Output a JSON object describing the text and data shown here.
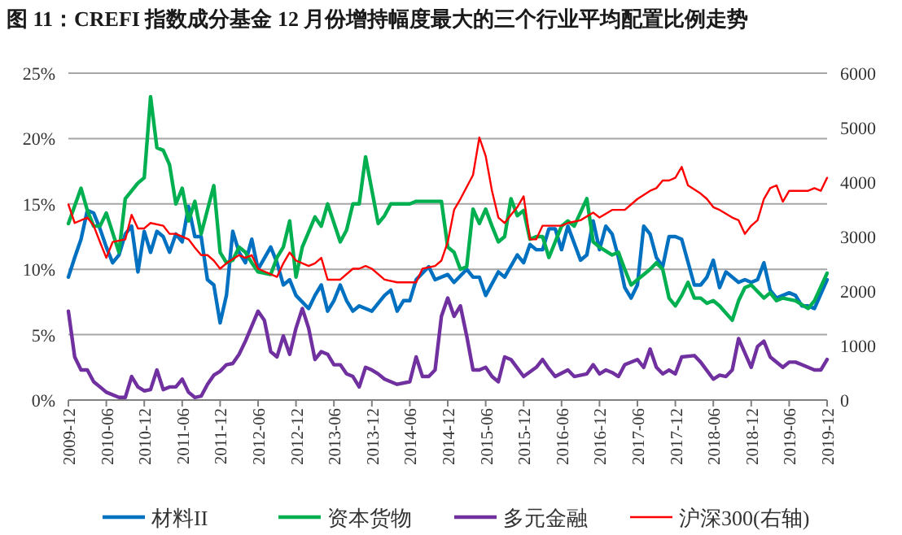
{
  "chart_data": {
    "type": "line",
    "title": "图 11：CREFI 指数成分基金 12 月份增持幅度最大的三个行业平均配置比例走势",
    "xlim": [
      "2009-12",
      "2019-12"
    ],
    "xticks": [
      "2009-12",
      "2010-06",
      "2010-12",
      "2011-06",
      "2011-12",
      "2012-06",
      "2012-12",
      "2013-06",
      "2013-12",
      "2014-06",
      "2014-12",
      "2015-06",
      "2015-12",
      "2016-06",
      "2016-12",
      "2017-06",
      "2017-12",
      "2018-06",
      "2018-12",
      "2019-06",
      "2019-12"
    ],
    "ylim": [
      0,
      25
    ],
    "yticks": [
      {
        "value": 0,
        "label": "0%"
      },
      {
        "value": 5,
        "label": "5%"
      },
      {
        "value": 10,
        "label": "10%"
      },
      {
        "value": 15,
        "label": "15%"
      },
      {
        "value": 20,
        "label": "20%"
      },
      {
        "value": 25,
        "label": "25%"
      }
    ],
    "y2lim": [
      0,
      6000
    ],
    "y2ticks": [
      0,
      1000,
      2000,
      3000,
      4000,
      5000,
      6000
    ],
    "grid": "y",
    "legend": "bottom",
    "line_style": "solid",
    "series": [
      {
        "name": "材料II",
        "color": "#0070c0",
        "x": [
          "2009-12",
          "2010-01",
          "2010-02",
          "2010-03",
          "2010-04",
          "2010-05",
          "2010-06",
          "2010-07",
          "2010-08",
          "2010-09",
          "2010-10",
          "2010-11",
          "2010-12",
          "2011-01",
          "2011-02",
          "2011-03",
          "2011-04",
          "2011-05",
          "2011-06",
          "2011-07",
          "2011-08",
          "2011-09",
          "2011-10",
          "2011-11",
          "2011-12",
          "2012-01",
          "2012-02",
          "2012-03",
          "2012-04",
          "2012-05",
          "2012-06",
          "2012-08",
          "2012-09",
          "2012-10",
          "2012-11",
          "2012-12",
          "2013-02",
          "2013-03",
          "2013-04",
          "2013-05",
          "2013-06",
          "2013-07",
          "2013-08",
          "2013-09",
          "2013-10",
          "2013-12",
          "2014-02",
          "2014-03",
          "2014-04",
          "2014-05",
          "2014-06",
          "2014-07",
          "2014-09",
          "2014-10",
          "2014-12",
          "2015-01",
          "2015-03",
          "2015-04",
          "2015-05",
          "2015-06",
          "2015-08",
          "2015-09",
          "2015-11",
          "2015-12",
          "2016-01",
          "2016-02",
          "2016-03",
          "2016-04",
          "2016-05",
          "2016-06",
          "2016-07",
          "2016-09",
          "2016-10",
          "2016-11",
          "2016-12",
          "2017-01",
          "2017-02",
          "2017-03",
          "2017-04",
          "2017-05",
          "2017-06",
          "2017-07",
          "2017-08",
          "2017-09",
          "2017-10",
          "2017-11",
          "2017-12",
          "2018-01",
          "2018-03",
          "2018-04",
          "2018-05",
          "2018-06",
          "2018-07",
          "2018-08",
          "2018-10",
          "2018-11",
          "2018-12",
          "2019-01",
          "2019-02",
          "2019-03",
          "2019-04",
          "2019-06",
          "2019-07",
          "2019-08",
          "2019-09",
          "2019-10",
          "2019-12"
        ],
        "values": [
          9.4,
          10.9,
          12.3,
          14.5,
          14.3,
          13.1,
          11.7,
          10.5,
          11.1,
          12.7,
          13.3,
          9.8,
          12.9,
          11.3,
          12.9,
          12.5,
          11.3,
          12.7,
          12.1,
          14.8,
          12.5,
          12.5,
          9.2,
          8.8,
          5.9,
          8,
          12.9,
          11.3,
          10.5,
          12.3,
          10,
          11.7,
          10.5,
          8.8,
          9.2,
          8,
          7,
          8,
          8.8,
          6.8,
          7.6,
          8.8,
          7.6,
          6.8,
          7.2,
          6.8,
          8,
          8.4,
          6.8,
          7.6,
          7.6,
          9.2,
          10.2,
          9.2,
          9.6,
          9,
          10,
          9.4,
          9.4,
          8,
          9.8,
          9.4,
          11.1,
          10.5,
          11.9,
          11.5,
          11.5,
          13.1,
          13.1,
          11.5,
          13.3,
          10.7,
          11.1,
          13.7,
          11.5,
          13.3,
          12.7,
          10.9,
          8.6,
          7.8,
          8.8,
          13.3,
          12.7,
          10.9,
          10.2,
          12.5,
          12.5,
          12.3,
          8.8,
          8.8,
          9.4,
          10.7,
          8.6,
          9.8,
          9,
          9.2,
          9,
          9.2,
          10.5,
          8.4,
          7.8,
          8.2,
          8,
          7.2,
          7.2,
          7,
          9.2
        ]
      },
      {
        "name": "资本货物",
        "color": "#00b050",
        "x": [
          "2009-12",
          "2010-02",
          "2010-03",
          "2010-04",
          "2010-05",
          "2010-06",
          "2010-08",
          "2010-09",
          "2010-11",
          "2010-12",
          "2011-01",
          "2011-02",
          "2011-03",
          "2011-04",
          "2011-05",
          "2011-06",
          "2011-07",
          "2011-08",
          "2011-09",
          "2011-11",
          "2011-12",
          "2012-01",
          "2012-02",
          "2012-03",
          "2012-04",
          "2012-05",
          "2012-06",
          "2012-08",
          "2012-09",
          "2012-10",
          "2012-11",
          "2012-12",
          "2013-01",
          "2013-03",
          "2013-04",
          "2013-05",
          "2013-07",
          "2013-08",
          "2013-09",
          "2013-10",
          "2013-11",
          "2014-01",
          "2014-02",
          "2014-03",
          "2014-06",
          "2014-07",
          "2014-10",
          "2014-11",
          "2014-12",
          "2015-01",
          "2015-02",
          "2015-03",
          "2015-04",
          "2015-05",
          "2015-06",
          "2015-07",
          "2015-08",
          "2015-09",
          "2015-10",
          "2015-11",
          "2015-12",
          "2016-01",
          "2016-02",
          "2016-03",
          "2016-04",
          "2016-06",
          "2016-07",
          "2016-08",
          "2016-10",
          "2016-11",
          "2016-12",
          "2017-02",
          "2017-03",
          "2017-04",
          "2017-05",
          "2017-06",
          "2017-08",
          "2017-09",
          "2017-10",
          "2017-11",
          "2017-12",
          "2018-01",
          "2018-02",
          "2018-03",
          "2018-04",
          "2018-05",
          "2018-06",
          "2018-07",
          "2018-09",
          "2018-10",
          "2018-11",
          "2018-12",
          "2019-02",
          "2019-03",
          "2019-04",
          "2019-05",
          "2019-07",
          "2019-09",
          "2019-10",
          "2019-12"
        ],
        "values": [
          13.5,
          16.2,
          14.5,
          13.3,
          13.3,
          14.3,
          11.3,
          15.4,
          16.6,
          17,
          23.2,
          19.3,
          19.1,
          18,
          15,
          16.2,
          13.7,
          15.2,
          12.7,
          16.4,
          11.3,
          10.5,
          10.7,
          11.7,
          11.3,
          10.5,
          9.8,
          9.6,
          10.9,
          11.7,
          13.7,
          9.4,
          11.7,
          14,
          13.3,
          15,
          12.1,
          13,
          15,
          15,
          18.6,
          13.5,
          14.1,
          15,
          15,
          15.2,
          15.2,
          15.2,
          11.7,
          11.3,
          10,
          10.2,
          14.6,
          13.5,
          14.6,
          13.3,
          12.1,
          12.5,
          15.4,
          14.1,
          14.5,
          12.3,
          12.5,
          12.5,
          10.9,
          13.3,
          13.7,
          13.3,
          15.4,
          12.1,
          11.7,
          11.1,
          11.3,
          10,
          8.8,
          9.2,
          10,
          10.5,
          10,
          7.8,
          7.2,
          8,
          9,
          7.8,
          7.8,
          7.4,
          7.6,
          7.2,
          6.1,
          7.6,
          8.6,
          8.8,
          7.8,
          8.2,
          7.6,
          7.8,
          7.6,
          7,
          7.6,
          9.7
        ]
      },
      {
        "name": "多元金融",
        "color": "#7030a0",
        "x": [
          "2009-12",
          "2010-01",
          "2010-02",
          "2010-03",
          "2010-04",
          "2010-05",
          "2010-06",
          "2010-08",
          "2010-09",
          "2010-10",
          "2010-11",
          "2010-12",
          "2011-01",
          "2011-02",
          "2011-03",
          "2011-04",
          "2011-05",
          "2011-06",
          "2011-07",
          "2011-08",
          "2011-09",
          "2011-10",
          "2011-11",
          "2011-12",
          "2012-01",
          "2012-02",
          "2012-03",
          "2012-04",
          "2012-06",
          "2012-07",
          "2012-08",
          "2012-09",
          "2012-10",
          "2012-11",
          "2012-12",
          "2013-01",
          "2013-02",
          "2013-03",
          "2013-04",
          "2013-05",
          "2013-06",
          "2013-07",
          "2013-08",
          "2013-09",
          "2013-10",
          "2013-11",
          "2013-12",
          "2014-01",
          "2014-02",
          "2014-03",
          "2014-04",
          "2014-06",
          "2014-07",
          "2014-08",
          "2014-09",
          "2014-10",
          "2014-11",
          "2014-12",
          "2015-01",
          "2015-02",
          "2015-03",
          "2015-04",
          "2015-05",
          "2015-06",
          "2015-07",
          "2015-08",
          "2015-09",
          "2015-10",
          "2015-12",
          "2016-02",
          "2016-03",
          "2016-04",
          "2016-05",
          "2016-07",
          "2016-08",
          "2016-10",
          "2016-11",
          "2016-12",
          "2017-01",
          "2017-02",
          "2017-03",
          "2017-04",
          "2017-06",
          "2017-07",
          "2017-08",
          "2017-09",
          "2017-10",
          "2017-11",
          "2017-12",
          "2018-01",
          "2018-03",
          "2018-04",
          "2018-06",
          "2018-07",
          "2018-08",
          "2018-09",
          "2018-10",
          "2018-12",
          "2019-01",
          "2019-02",
          "2019-03",
          "2019-05",
          "2019-06",
          "2019-07",
          "2019-08",
          "2019-10",
          "2019-11",
          "2019-12"
        ],
        "values": [
          6.8,
          3.3,
          2.3,
          2.3,
          1.4,
          1,
          0.6,
          0.2,
          0.2,
          1.8,
          1,
          0.7,
          0.8,
          2.3,
          0.8,
          1,
          1,
          1.6,
          0.6,
          0.2,
          0.3,
          1.2,
          1.9,
          2.2,
          2.7,
          2.8,
          3.5,
          4.5,
          6.8,
          6.1,
          3.7,
          3.3,
          4.9,
          3.5,
          5.5,
          7,
          5.5,
          3.1,
          3.7,
          3.5,
          2.7,
          2.7,
          2,
          1.8,
          1,
          2.5,
          2.3,
          2,
          1.6,
          1.4,
          1.2,
          1.4,
          3.3,
          1.8,
          1.8,
          2.3,
          6.4,
          7.8,
          6.4,
          7.2,
          4.9,
          2.3,
          2.3,
          2.5,
          1.8,
          1.4,
          3.3,
          3.1,
          1.8,
          2.5,
          3.1,
          2.4,
          1.8,
          2.3,
          1.8,
          2,
          2.7,
          2,
          2.3,
          2.1,
          1.8,
          2.7,
          3.1,
          2.5,
          3.9,
          2.5,
          2,
          2.3,
          2,
          3.3,
          3.4,
          2.9,
          1.6,
          1.9,
          1.8,
          2.3,
          4.7,
          2.5,
          4.1,
          4.5,
          3.3,
          2.5,
          2.9,
          2.9,
          2.7,
          2.3,
          2.3,
          3.1
        ]
      },
      {
        "name": "沪深300(右轴)",
        "color": "#ff0000",
        "axis": "y2",
        "x": [
          "2009-12",
          "2010-01",
          "2010-03",
          "2010-04",
          "2010-05",
          "2010-06",
          "2010-07",
          "2010-09",
          "2010-10",
          "2010-11",
          "2010-12",
          "2011-01",
          "2011-03",
          "2011-04",
          "2011-05",
          "2011-07",
          "2011-08",
          "2011-09",
          "2011-10",
          "2011-11",
          "2011-12",
          "2012-01",
          "2012-03",
          "2012-04",
          "2012-05",
          "2012-06",
          "2012-08",
          "2012-09",
          "2012-10",
          "2012-11",
          "2012-12",
          "2013-02",
          "2013-03",
          "2013-04",
          "2013-05",
          "2013-07",
          "2013-09",
          "2013-10",
          "2013-11",
          "2013-12",
          "2014-02",
          "2014-04",
          "2014-05",
          "2014-07",
          "2014-08",
          "2014-10",
          "2014-11",
          "2014-12",
          "2015-01",
          "2015-02",
          "2015-04",
          "2015-05",
          "2015-06",
          "2015-07",
          "2015-08",
          "2015-09",
          "2015-10",
          "2015-11",
          "2015-12",
          "2016-01",
          "2016-02",
          "2016-03",
          "2016-05",
          "2016-06",
          "2016-07",
          "2016-09",
          "2016-11",
          "2016-12",
          "2017-02",
          "2017-04",
          "2017-06",
          "2017-08",
          "2017-09",
          "2017-10",
          "2017-11",
          "2017-12",
          "2018-01",
          "2018-02",
          "2018-04",
          "2018-05",
          "2018-06",
          "2018-07",
          "2018-09",
          "2018-10",
          "2018-11",
          "2018-12",
          "2019-01",
          "2019-02",
          "2019-03",
          "2019-04",
          "2019-05",
          "2019-06",
          "2019-07",
          "2019-09",
          "2019-10",
          "2019-11",
          "2019-12"
        ],
        "values": [
          3590,
          3250,
          3350,
          3200,
          2900,
          2610,
          2900,
          2950,
          3400,
          3150,
          3150,
          3250,
          3200,
          3050,
          3050,
          2950,
          2800,
          2660,
          2660,
          2560,
          2410,
          2510,
          2660,
          2610,
          2660,
          2410,
          2310,
          2260,
          2510,
          2710,
          2560,
          2460,
          2510,
          2610,
          2210,
          2210,
          2410,
          2410,
          2460,
          2410,
          2210,
          2160,
          2160,
          2160,
          2410,
          2460,
          2560,
          2900,
          3490,
          3690,
          4130,
          4820,
          4480,
          3840,
          3350,
          3250,
          3400,
          3540,
          3740,
          2950,
          2950,
          3200,
          3200,
          3200,
          3250,
          3300,
          3440,
          3350,
          3490,
          3490,
          3690,
          3840,
          3890,
          4030,
          4030,
          4080,
          4280,
          3940,
          3790,
          3690,
          3540,
          3490,
          3350,
          3300,
          3050,
          3200,
          3300,
          3690,
          3890,
          3940,
          3640,
          3840,
          3840,
          3840,
          3890,
          3840,
          4080
        ]
      }
    ]
  }
}
